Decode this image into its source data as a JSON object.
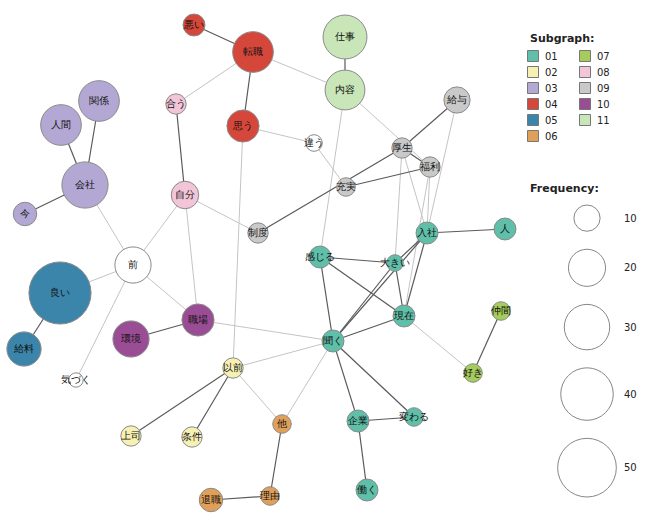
{
  "chart_data": {
    "type": "network",
    "groups_title": "Subgraph:",
    "frequency_title": "Frequency:",
    "frequency_legend": [
      10,
      20,
      30,
      40,
      50
    ],
    "groups": [
      {
        "name": "01",
        "color": "#5fbfa9"
      },
      {
        "name": "02",
        "color": "#f7f0b4"
      },
      {
        "name": "03",
        "color": "#b3a8d4"
      },
      {
        "name": "04",
        "color": "#d5473a"
      },
      {
        "name": "05",
        "color": "#3c85aa"
      },
      {
        "name": "06",
        "color": "#e0a05a"
      },
      {
        "name": "07",
        "color": "#a5cc5c"
      },
      {
        "name": "08",
        "color": "#f3c5d8"
      },
      {
        "name": "09",
        "color": "#c9c9c9"
      },
      {
        "name": "10",
        "color": "#9a4d94"
      },
      {
        "name": "11",
        "color": "#c8e6b8"
      }
    ],
    "nodes": [
      {
        "label": "悪い",
        "group": "04",
        "frequency": 7
      },
      {
        "label": "転職",
        "group": "04",
        "frequency": 24
      },
      {
        "label": "思う",
        "group": "04",
        "frequency": 15
      },
      {
        "label": "仕事",
        "group": "11",
        "frequency": 28
      },
      {
        "label": "内容",
        "group": "11",
        "frequency": 23
      },
      {
        "label": "給与",
        "group": "09",
        "frequency": 10
      },
      {
        "label": "合う",
        "group": "08",
        "frequency": 6
      },
      {
        "label": "違う",
        "group": null,
        "frequency": 4
      },
      {
        "label": "厚生",
        "group": "09",
        "frequency": 6
      },
      {
        "label": "福利",
        "group": "09",
        "frequency": 6
      },
      {
        "label": "充実",
        "group": "09",
        "frequency": 5
      },
      {
        "label": "自分",
        "group": "08",
        "frequency": 11
      },
      {
        "label": "関係",
        "group": "03",
        "frequency": 24
      },
      {
        "label": "人間",
        "group": "03",
        "frequency": 24
      },
      {
        "label": "会社",
        "group": "03",
        "frequency": 31
      },
      {
        "label": "今",
        "group": "03",
        "frequency": 8
      },
      {
        "label": "前",
        "group": null,
        "frequency": 19
      },
      {
        "label": "制度",
        "group": "09",
        "frequency": 6
      },
      {
        "label": "感じる",
        "group": "01",
        "frequency": 7
      },
      {
        "label": "大きい",
        "group": "01",
        "frequency": 4
      },
      {
        "label": "入社",
        "group": "01",
        "frequency": 7
      },
      {
        "label": "人",
        "group": "01",
        "frequency": 7
      },
      {
        "label": "現在",
        "group": "01",
        "frequency": 7
      },
      {
        "label": "仲間",
        "group": "07",
        "frequency": 5
      },
      {
        "label": "好き",
        "group": "07",
        "frequency": 5
      },
      {
        "label": "良い",
        "group": "05",
        "frequency": 56
      },
      {
        "label": "給料",
        "group": "05",
        "frequency": 17
      },
      {
        "label": "気づく",
        "group": null,
        "frequency": 3
      },
      {
        "label": "環境",
        "group": "10",
        "frequency": 19
      },
      {
        "label": "職場",
        "group": "10",
        "frequency": 15
      },
      {
        "label": "以前",
        "group": "02",
        "frequency": 6
      },
      {
        "label": "上司",
        "group": "02",
        "frequency": 6
      },
      {
        "label": "条件",
        "group": "02",
        "frequency": 6
      },
      {
        "label": "聞く",
        "group": "01",
        "frequency": 7
      },
      {
        "label": "他",
        "group": "06",
        "frequency": 5
      },
      {
        "label": "理由",
        "group": "06",
        "frequency": 5
      },
      {
        "label": "退職",
        "group": "06",
        "frequency": 8
      },
      {
        "label": "企業",
        "group": "01",
        "frequency": 7
      },
      {
        "label": "変わる",
        "group": "01",
        "frequency": 5
      },
      {
        "label": "働く",
        "group": "01",
        "frequency": 7
      }
    ],
    "edges": [
      [
        "悪い",
        "転職"
      ],
      [
        "転職",
        "思う"
      ],
      [
        "転職",
        "合う"
      ],
      [
        "転職",
        "内容"
      ],
      [
        "仕事",
        "内容"
      ],
      [
        "内容",
        "福利"
      ],
      [
        "内容",
        "感じる"
      ],
      [
        "思う",
        "違う"
      ],
      [
        "思う",
        "以前"
      ],
      [
        "合う",
        "自分"
      ],
      [
        "自分",
        "前"
      ],
      [
        "自分",
        "職場"
      ],
      [
        "自分",
        "制度"
      ],
      [
        "会社",
        "関係"
      ],
      [
        "会社",
        "人間"
      ],
      [
        "会社",
        "今"
      ],
      [
        "会社",
        "前"
      ],
      [
        "前",
        "良い"
      ],
      [
        "前",
        "気づく"
      ],
      [
        "前",
        "職場"
      ],
      [
        "良い",
        "給料"
      ],
      [
        "環境",
        "職場"
      ],
      [
        "職場",
        "聞く"
      ],
      [
        "以前",
        "上司"
      ],
      [
        "以前",
        "条件"
      ],
      [
        "以前",
        "他"
      ],
      [
        "以前",
        "聞く"
      ],
      [
        "他",
        "理由"
      ],
      [
        "理由",
        "退職"
      ],
      [
        "他",
        "聞く"
      ],
      [
        "制度",
        "厚生"
      ],
      [
        "違う",
        "充実"
      ],
      [
        "充実",
        "福利"
      ],
      [
        "厚生",
        "福利"
      ],
      [
        "厚生",
        "給与"
      ],
      [
        "給与",
        "入社"
      ],
      [
        "厚生",
        "入社"
      ],
      [
        "福利",
        "入社"
      ],
      [
        "厚生",
        "大きい"
      ],
      [
        "福利",
        "現在"
      ],
      [
        "入社",
        "人"
      ],
      [
        "入社",
        "大きい"
      ],
      [
        "入社",
        "現在"
      ],
      [
        "入社",
        "聞く"
      ],
      [
        "感じる",
        "大きい"
      ],
      [
        "感じる",
        "現在"
      ],
      [
        "感じる",
        "聞く"
      ],
      [
        "大きい",
        "聞く"
      ],
      [
        "大きい",
        "現在"
      ],
      [
        "現在",
        "聞く"
      ],
      [
        "現在",
        "好き"
      ],
      [
        "仲間",
        "好き"
      ],
      [
        "聞く",
        "企業"
      ],
      [
        "聞く",
        "変わる"
      ],
      [
        "企業",
        "変わる"
      ],
      [
        "企業",
        "働く"
      ]
    ]
  }
}
